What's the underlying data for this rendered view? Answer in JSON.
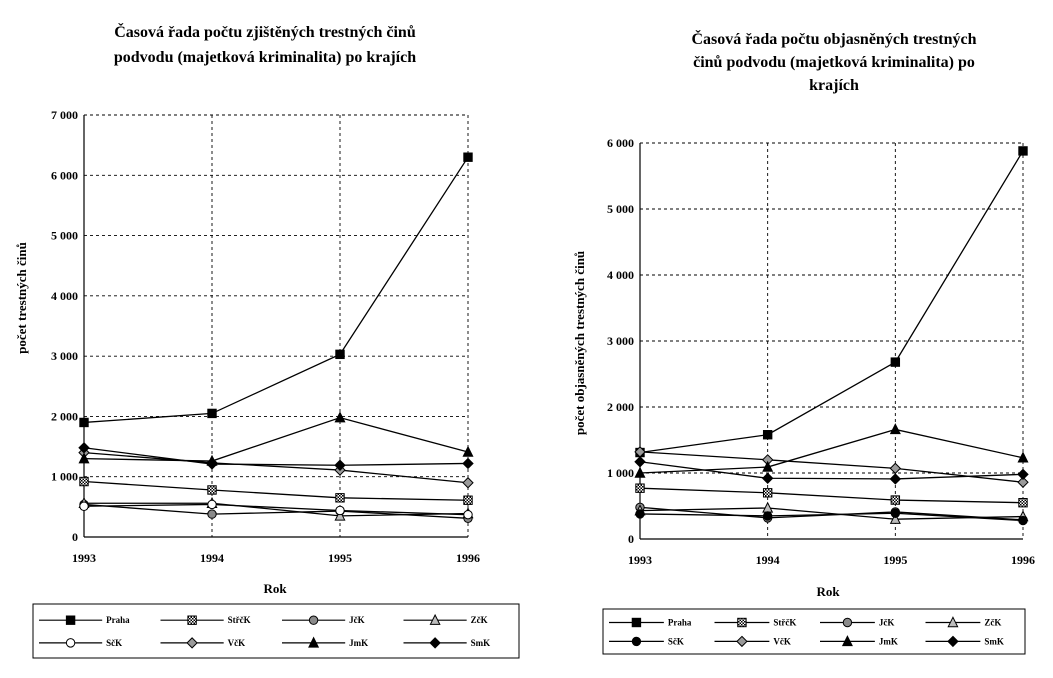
{
  "chart_data": [
    {
      "type": "line",
      "title_lines": [
        "Časová řada počtu zjištěných trestných činů",
        "podvodu (majetková kriminalita) po krajích"
      ],
      "xlabel": "Rok",
      "ylabel": "počet trestných činů",
      "x": [
        1993,
        1994,
        1995,
        1996
      ],
      "x_tick_labels": [
        "1993",
        "1994",
        "1995",
        "1996"
      ],
      "ylim": [
        0,
        7000
      ],
      "y_ticks": [
        0,
        1000,
        2000,
        3000,
        4000,
        5000,
        6000,
        7000
      ],
      "y_tick_labels": [
        "0",
        "1 000",
        "2 000",
        "3 000",
        "4 000",
        "5 000",
        "6 000",
        "7 000"
      ],
      "grid": true,
      "legend_placement": "bottom",
      "series": [
        {
          "name": "Praha",
          "marker": "square-filled",
          "values": [
            1900,
            2050,
            3030,
            6300
          ]
        },
        {
          "name": "StřčK",
          "marker": "square-hatched",
          "values": [
            920,
            780,
            650,
            610
          ]
        },
        {
          "name": "JčK",
          "marker": "circle-hatched",
          "values": [
            540,
            380,
            430,
            310
          ]
        },
        {
          "name": "ZčK",
          "marker": "triangle-open",
          "values": [
            560,
            560,
            350,
            390
          ]
        },
        {
          "name": "SčK",
          "marker": "circle-open",
          "values": [
            510,
            540,
            440,
            370
          ]
        },
        {
          "name": "VčK",
          "marker": "diamond-gray",
          "values": [
            1400,
            1230,
            1110,
            900
          ]
        },
        {
          "name": "JmK",
          "marker": "triangle-filled",
          "values": [
            1300,
            1260,
            1980,
            1410
          ]
        },
        {
          "name": "SmK",
          "marker": "diamond-filled",
          "values": [
            1480,
            1210,
            1190,
            1220
          ]
        }
      ]
    },
    {
      "type": "line",
      "title_lines": [
        "Časová řada počtu objasněných trestných",
        "činů podvodu (majetková kriminalita) po",
        "krajích"
      ],
      "xlabel": "Rok",
      "ylabel": "počet objasněných trestných činů",
      "x": [
        1993,
        1994,
        1995,
        1996
      ],
      "x_tick_labels": [
        "1993",
        "1994",
        "1995",
        "1996"
      ],
      "ylim": [
        0,
        6000
      ],
      "y_ticks": [
        0,
        1000,
        2000,
        3000,
        4000,
        5000,
        6000
      ],
      "y_tick_labels": [
        "0",
        "1 000",
        "2 000",
        "3 000",
        "4 000",
        "5 000",
        "6 000"
      ],
      "grid": true,
      "legend_placement": "bottom",
      "series": [
        {
          "name": "Praha",
          "marker": "square-filled",
          "values": [
            1310,
            1580,
            2680,
            5880
          ]
        },
        {
          "name": "StřčK",
          "marker": "square-hatched",
          "values": [
            770,
            700,
            590,
            550
          ]
        },
        {
          "name": "JčK",
          "marker": "circle-hatched",
          "values": [
            480,
            320,
            410,
            290
          ]
        },
        {
          "name": "ZčK",
          "marker": "triangle-open",
          "values": [
            430,
            470,
            300,
            340
          ]
        },
        {
          "name": "SčK",
          "marker": "circle-filled",
          "values": [
            380,
            350,
            390,
            280
          ]
        },
        {
          "name": "VčK",
          "marker": "diamond-gray",
          "values": [
            1320,
            1200,
            1070,
            860
          ]
        },
        {
          "name": "JmK",
          "marker": "triangle-filled",
          "values": [
            1000,
            1090,
            1660,
            1230
          ]
        },
        {
          "name": "SmK",
          "marker": "diamond-filled",
          "values": [
            1170,
            920,
            910,
            980
          ]
        }
      ]
    }
  ]
}
